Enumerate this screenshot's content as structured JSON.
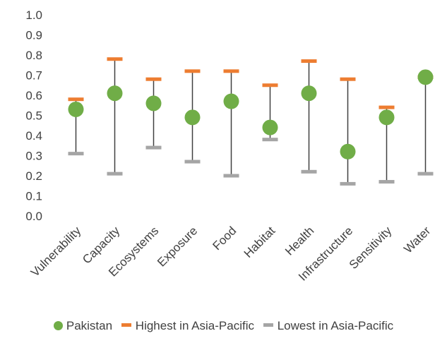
{
  "chart_data": {
    "type": "scatter",
    "categories": [
      "Vulnerability",
      "Capacity",
      "Ecosystems",
      "Exposure",
      "Food",
      "Habitat",
      "Health",
      "Infrastructure",
      "Sensitivity",
      "Water"
    ],
    "series": [
      {
        "name": "Pakistan",
        "marker": "circle",
        "color": "#70AD47",
        "values": [
          0.53,
          0.61,
          0.56,
          0.49,
          0.57,
          0.44,
          0.61,
          0.32,
          0.49,
          0.69
        ]
      },
      {
        "name": "Highest in Asia-Pacific",
        "marker": "dash",
        "color": "#ED7D31",
        "values": [
          0.58,
          0.78,
          0.68,
          0.72,
          0.72,
          0.65,
          0.77,
          0.68,
          0.54,
          0.69
        ]
      },
      {
        "name": "Lowest in Asia-Pacific",
        "marker": "dash",
        "color": "#A5A5A5",
        "values": [
          0.31,
          0.21,
          0.34,
          0.27,
          0.2,
          0.38,
          0.22,
          0.16,
          0.17,
          0.21
        ]
      }
    ],
    "range_line_color": "#404040",
    "ylim": [
      0.0,
      1.0
    ],
    "yticks": [
      "0.0",
      "0.1",
      "0.2",
      "0.3",
      "0.4",
      "0.5",
      "0.6",
      "0.7",
      "0.8",
      "0.9",
      "1.0"
    ],
    "grid": false,
    "legend_position": "bottom"
  }
}
